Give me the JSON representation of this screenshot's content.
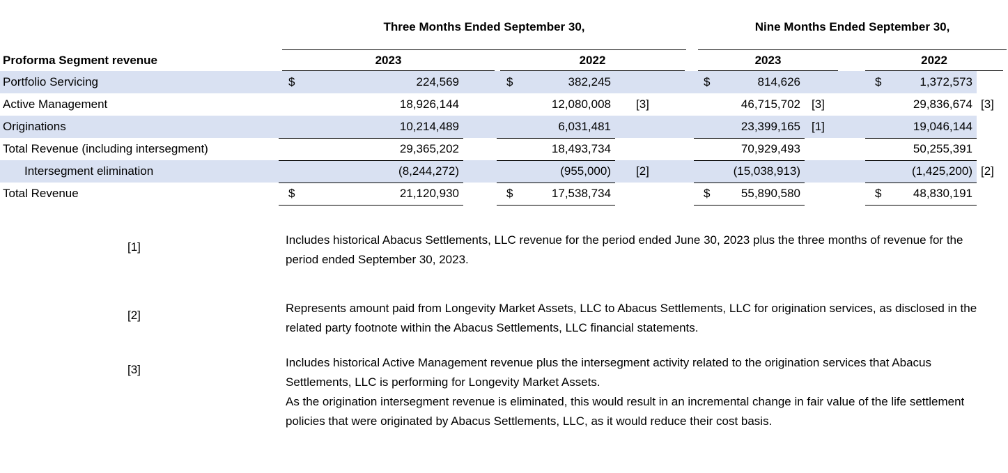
{
  "table": {
    "title": "Proforma Segment revenue",
    "col_groups": [
      {
        "label": "Three Months Ended September 30,",
        "years": [
          "2023",
          "2022"
        ]
      },
      {
        "label": "Nine Months Ended September 30,",
        "years": [
          "2023",
          "2022"
        ]
      }
    ],
    "rows": [
      {
        "label": "Portfolio Servicing",
        "cells": [
          {
            "d": "$",
            "v": "224,569",
            "n": ""
          },
          {
            "d": "$",
            "v": "382,245",
            "n": ""
          },
          {
            "d": "$",
            "v": "814,626",
            "n": ""
          },
          {
            "d": "$",
            "v": "1,372,573",
            "n": ""
          }
        ]
      },
      {
        "label": "Active Management",
        "cells": [
          {
            "d": "",
            "v": "18,926,144",
            "n": ""
          },
          {
            "d": "",
            "v": "12,080,008",
            "n": "[3]"
          },
          {
            "d": "",
            "v": "46,715,702",
            "n": "[3]"
          },
          {
            "d": "",
            "v": "29,836,674",
            "n": "[3]"
          }
        ]
      },
      {
        "label": "Originations",
        "cells": [
          {
            "d": "",
            "v": "10,214,489",
            "n": ""
          },
          {
            "d": "",
            "v": "6,031,481",
            "n": ""
          },
          {
            "d": "",
            "v": "23,399,165",
            "n": "[1]"
          },
          {
            "d": "",
            "v": "19,046,144",
            "n": ""
          }
        ]
      },
      {
        "label": "Total Revenue (including intersegment)",
        "cells": [
          {
            "d": "",
            "v": "29,365,202",
            "n": ""
          },
          {
            "d": "",
            "v": "18,493,734",
            "n": ""
          },
          {
            "d": "",
            "v": "70,929,493",
            "n": ""
          },
          {
            "d": "",
            "v": "50,255,391",
            "n": ""
          }
        ]
      },
      {
        "label": "Intersegment elimination",
        "cells": [
          {
            "d": "",
            "v": "(8,244,272)",
            "n": ""
          },
          {
            "d": "",
            "v": "(955,000)",
            "n": "[2]"
          },
          {
            "d": "",
            "v": "(15,038,913)",
            "n": ""
          },
          {
            "d": "",
            "v": "(1,425,200)",
            "n": "[2]"
          }
        ]
      },
      {
        "label": "Total Revenue",
        "cells": [
          {
            "d": "$",
            "v": "21,120,930",
            "n": ""
          },
          {
            "d": "$",
            "v": "17,538,734",
            "n": ""
          },
          {
            "d": "$",
            "v": "55,890,580",
            "n": ""
          },
          {
            "d": "$",
            "v": "48,830,191",
            "n": ""
          }
        ]
      }
    ]
  },
  "footnotes": [
    {
      "marker": "[1]",
      "paragraphs": [
        " Includes historical Abacus Settlements, LLC revenue for the period ended June 30, 2023 plus the three months of revenue for the period ended September 30, 2023."
      ]
    },
    {
      "marker": "[2]",
      "paragraphs": [
        " Represents amount paid from Longevity Market Assets, LLC to Abacus Settlements, LLC for origination services, as disclosed in the related party footnote within the Abacus Settlements, LLC financial statements."
      ]
    },
    {
      "marker": "[3]",
      "paragraphs": [
        " Includes historical Active Management revenue plus the intersegment activity related to the origination services that Abacus Settlements, LLC is performing for Longevity Market Assets.",
        " As the origination intersegment revenue is eliminated, this would result in an incremental change in fair value of the life settlement policies that were originated by Abacus Settlements, LLC, as it would reduce their cost basis."
      ]
    }
  ],
  "colors": {
    "row_shade": "#d9e1f2",
    "rule": "#000000",
    "text": "#000000",
    "background": "#ffffff"
  }
}
